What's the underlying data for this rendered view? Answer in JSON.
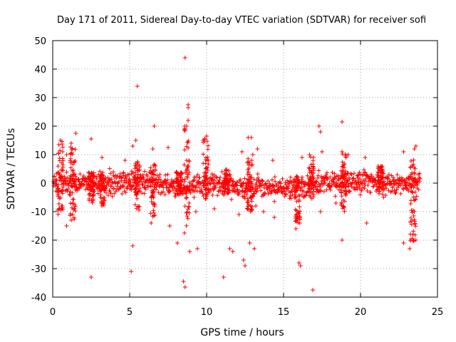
{
  "chart_data": {
    "type": "scatter",
    "title": "Day 171 of 2011, Sidereal Day-to-day VTEC variation (SDTVAR) for receiver sofi",
    "xlabel": "GPS time / hours",
    "ylabel": "SDTVAR / TECUs",
    "xlim": [
      0,
      25
    ],
    "ylim": [
      -40,
      50
    ],
    "xticks": [
      0,
      5,
      10,
      15,
      20,
      25
    ],
    "yticks": [
      -40,
      -30,
      -20,
      -10,
      0,
      10,
      20,
      30,
      40,
      50
    ],
    "grid": true,
    "marker": "plus",
    "color": "#ff0000",
    "series": [
      {
        "name": "SDTVAR",
        "outliers": [
          [
            8.6,
            44
          ],
          [
            5.5,
            34
          ],
          [
            8.8,
            27.5
          ],
          [
            8.8,
            26.5
          ],
          [
            6.6,
            20
          ],
          [
            18.8,
            21.5
          ],
          [
            17.3,
            20
          ],
          [
            17.4,
            18
          ],
          [
            1.5,
            17.5
          ],
          [
            2.5,
            15.5
          ],
          [
            0.5,
            15
          ],
          [
            12.7,
            16
          ],
          [
            12.9,
            16
          ],
          [
            10,
            16.5
          ],
          [
            9.9,
            15.5
          ],
          [
            5.2,
            13
          ],
          [
            5.4,
            15
          ],
          [
            8.7,
            20
          ],
          [
            8.8,
            22
          ],
          [
            8.6,
            18.5
          ],
          [
            0.9,
            10
          ],
          [
            1.2,
            14
          ],
          [
            3.2,
            9
          ],
          [
            4.7,
            8
          ],
          [
            6.5,
            12
          ],
          [
            7.5,
            12.5
          ],
          [
            11,
            4
          ],
          [
            12.3,
            11
          ],
          [
            13,
            10
          ],
          [
            13.3,
            12
          ],
          [
            14.3,
            8
          ],
          [
            16.2,
            9
          ],
          [
            17.5,
            11
          ],
          [
            18.8,
            11
          ],
          [
            19.2,
            10
          ],
          [
            20.3,
            9
          ],
          [
            22.8,
            11
          ],
          [
            23.6,
            13
          ],
          [
            23.5,
            12
          ],
          [
            12.5,
            -3
          ],
          [
            1.2,
            -13
          ],
          [
            0.9,
            -15
          ],
          [
            2.5,
            -33
          ],
          [
            3.2,
            -8
          ],
          [
            5.1,
            -31
          ],
          [
            5.2,
            -22
          ],
          [
            6.4,
            -14
          ],
          [
            7.6,
            -15
          ],
          [
            8.1,
            -21
          ],
          [
            8.5,
            -34.5
          ],
          [
            8.6,
            -36.5
          ],
          [
            8.9,
            -24
          ],
          [
            9.4,
            -23
          ],
          [
            10.5,
            -9
          ],
          [
            11.1,
            -33
          ],
          [
            11.5,
            -23
          ],
          [
            11.7,
            -24
          ],
          [
            12.4,
            -27
          ],
          [
            12.5,
            -29
          ],
          [
            12.8,
            -21
          ],
          [
            13.1,
            -23
          ],
          [
            13.7,
            -10
          ],
          [
            13.2,
            -8
          ],
          [
            15.8,
            -16
          ],
          [
            16,
            -28
          ],
          [
            16.1,
            -29
          ],
          [
            16.9,
            -37.5
          ],
          [
            17.4,
            -10
          ],
          [
            18.4,
            -7
          ],
          [
            18.8,
            -20
          ],
          [
            20.4,
            -14
          ],
          [
            21.5,
            -5
          ],
          [
            22.8,
            -21
          ],
          [
            23.2,
            -23
          ],
          [
            23.4,
            -18
          ],
          [
            23.6,
            -20
          ],
          [
            23.5,
            -10
          ],
          [
            4.1,
            -3
          ],
          [
            7.3,
            -4
          ],
          [
            9.3,
            -10
          ],
          [
            14.4,
            -12
          ],
          [
            16.2,
            -4
          ],
          [
            12.1,
            -11
          ]
        ],
        "bursts": [
          [
            0.5,
            15,
            -11
          ],
          [
            1.3,
            13,
            -13
          ],
          [
            2.5,
            4,
            -7
          ],
          [
            3.2,
            3,
            -8
          ],
          [
            5.5,
            8,
            -10
          ],
          [
            6.5,
            7,
            -12
          ],
          [
            8.2,
            4,
            -4
          ],
          [
            8.7,
            20,
            -18
          ],
          [
            9.95,
            16,
            -6
          ],
          [
            11.3,
            5,
            -5
          ],
          [
            12.8,
            9,
            -10
          ],
          [
            15.9,
            3,
            -15
          ],
          [
            16.8,
            10,
            -6
          ],
          [
            18.9,
            11,
            -10
          ],
          [
            21.3,
            6,
            -3
          ],
          [
            23.4,
            9,
            -22
          ]
        ]
      }
    ]
  }
}
